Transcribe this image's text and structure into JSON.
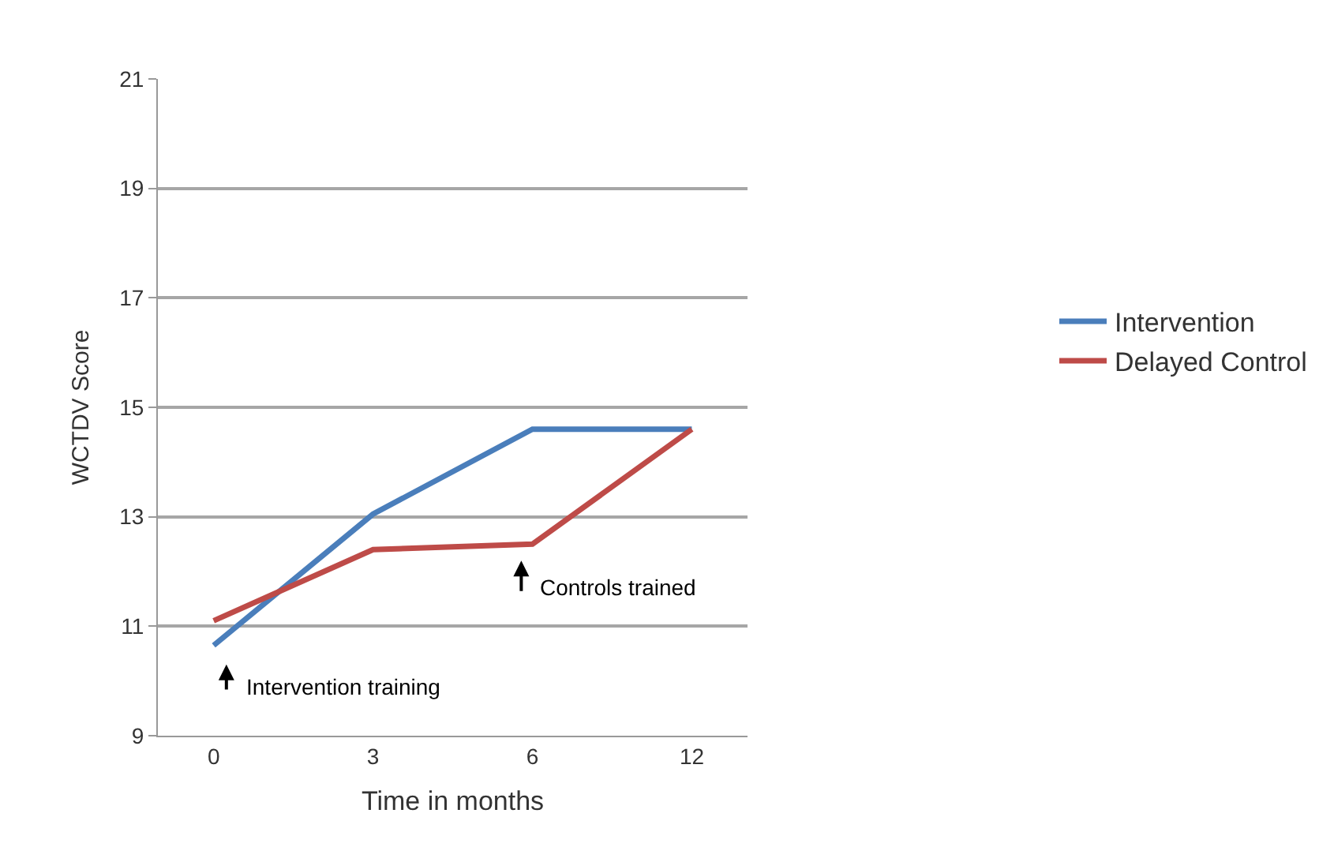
{
  "chart_data": {
    "type": "line",
    "xlabel": "Time in months",
    "ylabel": "WCTDV Score",
    "categories": [
      "0",
      "3",
      "6",
      "12"
    ],
    "series": [
      {
        "name": "Intervention",
        "color": "#4a7ebb",
        "values": [
          10.65,
          13.05,
          14.6,
          14.6
        ]
      },
      {
        "name": "Delayed Control",
        "color": "#be4b48",
        "values": [
          11.1,
          12.4,
          12.5,
          14.6
        ]
      }
    ],
    "ylim": [
      9,
      21
    ],
    "yticks": [
      9,
      11,
      13,
      15,
      17,
      19,
      21
    ],
    "grid": "y",
    "legend": "right",
    "marker": "none",
    "line_style": "solid",
    "annotations": [
      "Intervention training",
      "Controls trained"
    ]
  }
}
